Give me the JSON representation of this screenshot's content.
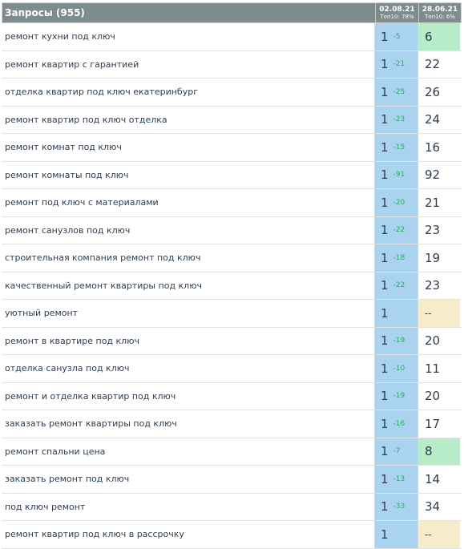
{
  "header": {
    "title": "Запросы (955)",
    "col1": {
      "date": "02.08.21",
      "top": "Топ10: 78%"
    },
    "col2": {
      "date": "28.06.21",
      "top": "Топ10: 6%"
    }
  },
  "colors": {
    "header_bg": "#7f8c8d",
    "col1_bg": "#a9d3ef",
    "highlight_green": "#b8ebc8",
    "missing_beige": "#f7ecc9",
    "delta_green": "#27ae60"
  },
  "rows": [
    {
      "query": "ремонт кухни под ключ",
      "pos1": "1",
      "delta": "-5",
      "pos2": "6",
      "state": "green"
    },
    {
      "query": "ремонт квартир с гарантией",
      "pos1": "1",
      "delta": "-21",
      "pos2": "22",
      "state": ""
    },
    {
      "query": "отделка квартир под ключ екатеринбург",
      "pos1": "1",
      "delta": "-25",
      "pos2": "26",
      "state": ""
    },
    {
      "query": "ремонт квартир под ключ отделка",
      "pos1": "1",
      "delta": "-23",
      "pos2": "24",
      "state": ""
    },
    {
      "query": "ремонт комнат под ключ",
      "pos1": "1",
      "delta": "-15",
      "pos2": "16",
      "state": ""
    },
    {
      "query": "ремонт комнаты под ключ",
      "pos1": "1",
      "delta": "-91",
      "pos2": "92",
      "state": ""
    },
    {
      "query": "ремонт под ключ с материалами",
      "pos1": "1",
      "delta": "-20",
      "pos2": "21",
      "state": ""
    },
    {
      "query": "ремонт санузлов под ключ",
      "pos1": "1",
      "delta": "-22",
      "pos2": "23",
      "state": ""
    },
    {
      "query": "строительная компания ремонт под ключ",
      "pos1": "1",
      "delta": "-18",
      "pos2": "19",
      "state": ""
    },
    {
      "query": "качественный ремонт квартиры под ключ",
      "pos1": "1",
      "delta": "-22",
      "pos2": "23",
      "state": ""
    },
    {
      "query": "уютный ремонт",
      "pos1": "1",
      "delta": "",
      "pos2": "--",
      "state": "beige"
    },
    {
      "query": "ремонт в квартире под ключ",
      "pos1": "1",
      "delta": "-19",
      "pos2": "20",
      "state": ""
    },
    {
      "query": "отделка санузла под ключ",
      "pos1": "1",
      "delta": "-10",
      "pos2": "11",
      "state": ""
    },
    {
      "query": "ремонт и отделка квартир под ключ",
      "pos1": "1",
      "delta": "-19",
      "pos2": "20",
      "state": ""
    },
    {
      "query": "заказать ремонт квартиры под ключ",
      "pos1": "1",
      "delta": "-16",
      "pos2": "17",
      "state": ""
    },
    {
      "query": "ремонт спальни цена",
      "pos1": "1",
      "delta": "-7",
      "pos2": "8",
      "state": "green"
    },
    {
      "query": "заказать ремонт под ключ",
      "pos1": "1",
      "delta": "-13",
      "pos2": "14",
      "state": ""
    },
    {
      "query": "под ключ ремонт",
      "pos1": "1",
      "delta": "-33",
      "pos2": "34",
      "state": ""
    },
    {
      "query": "ремонт квартир под ключ в рассрочку",
      "pos1": "1",
      "delta": "",
      "pos2": "--",
      "state": "beige"
    }
  ]
}
